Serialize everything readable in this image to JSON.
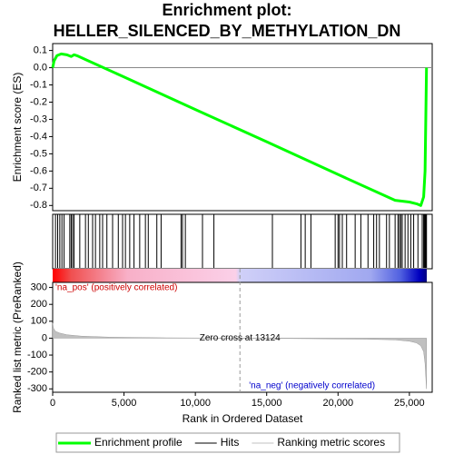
{
  "title": "Enrichment plot:",
  "subtitle": "HELLER_SILENCED_BY_METHYLATION_DN",
  "chart_data": [
    {
      "type": "line",
      "ylabel": "Enrichment score (ES)",
      "xlim": [
        0,
        26600
      ],
      "ylim": [
        -0.83,
        0.14
      ],
      "yticks": [
        0.1,
        {
          "value": 0,
          "label": "0.0"
        },
        -0.1,
        -0.2,
        -0.3,
        -0.4,
        -0.5,
        -0.6,
        -0.7,
        -0.8
      ],
      "x": [
        0,
        100,
        300,
        600,
        1000,
        1300,
        1500,
        1700,
        2500,
        5000,
        10000,
        15000,
        20000,
        24000,
        25000,
        25500,
        25800,
        26000,
        26100,
        26150,
        26200
      ],
      "series": [
        {
          "name": "Enrichment profile",
          "color": "#00ff00",
          "values": [
            0,
            0.04,
            0.07,
            0.08,
            0.075,
            0.065,
            0.075,
            0.07,
            0.04,
            -0.054,
            -0.243,
            -0.43,
            -0.62,
            -0.77,
            -0.78,
            -0.79,
            -0.8,
            -0.75,
            -0.6,
            -0.3,
            0
          ]
        }
      ]
    },
    {
      "type": "hits",
      "xlim": [
        0,
        26600
      ],
      "series": [
        {
          "name": "Hits",
          "color": "#000000",
          "x": [
            200,
            350,
            500,
            650,
            800,
            1200,
            1300,
            1400,
            1500,
            1900,
            2300,
            2500,
            2800,
            3000,
            3300,
            3500,
            3800,
            4200,
            4600,
            4900,
            5100,
            5400,
            5700,
            6100,
            6500,
            6700,
            7300,
            7600,
            9000,
            9100,
            9300,
            10500,
            11300,
            15400,
            17400,
            17700,
            18100,
            19800,
            20000,
            20100,
            20300,
            20600,
            21200,
            21600,
            22100,
            22500,
            22700,
            22900,
            23400,
            23600,
            24000,
            24200,
            24300,
            24400,
            24500,
            24700,
            24900,
            25100,
            25300,
            25600,
            25900,
            26000,
            26050,
            26100,
            26150,
            26200
          ]
        }
      ]
    },
    {
      "type": "area",
      "xlabel": "Rank in Ordered Dataset",
      "ylabel": "Ranked list metric (PreRanked)",
      "xlim": [
        0,
        26600
      ],
      "ylim": [
        -320,
        330
      ],
      "xticks": [
        0,
        {
          "value": 5000,
          "label": "5,000"
        },
        {
          "value": 10000,
          "label": "10,000"
        },
        {
          "value": 15000,
          "label": "15,000"
        },
        {
          "value": 20000,
          "label": "20,000"
        },
        {
          "value": 25000,
          "label": "25,000"
        }
      ],
      "yticks": [
        300,
        200,
        100,
        0,
        -100,
        -200,
        -300
      ],
      "zero_cross": 13124,
      "zero_cross_label": "Zero cross at 13124",
      "pos_label": "'na_pos' (positively correlated)",
      "neg_label": "'na_neg' (negatively correlated)",
      "x": [
        0,
        50,
        200,
        500,
        1000,
        2000,
        4000,
        8000,
        13124,
        18000,
        22000,
        24000,
        25000,
        25500,
        25800,
        26000,
        26100,
        26200
      ],
      "series": [
        {
          "name": "Ranking metric scores",
          "color": "#c0c0c0",
          "values": [
            90,
            60,
            40,
            30,
            20,
            12,
            6,
            2,
            0,
            -3,
            -6,
            -10,
            -18,
            -28,
            -45,
            -80,
            -150,
            -300
          ]
        }
      ]
    }
  ]
}
